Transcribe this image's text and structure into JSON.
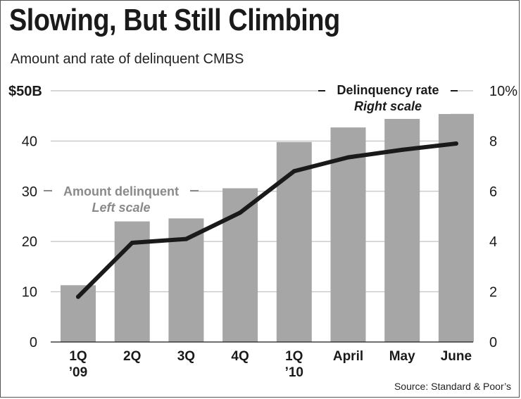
{
  "title": "Slowing, But Still Climbing",
  "subtitle": "Amount and rate of delinquent CMBS",
  "source": "Source: Standard & Poor’s",
  "colors": {
    "bar": "#a6a6a6",
    "line": "#1a1a1a",
    "grid": "#c8c8c8",
    "annotation_gray": "#8a8a8a"
  },
  "chart_data": {
    "type": "bar",
    "categories": [
      [
        "1Q",
        "’09"
      ],
      [
        "2Q"
      ],
      [
        "3Q"
      ],
      [
        "4Q"
      ],
      [
        "1Q",
        "’10"
      ],
      [
        "April"
      ],
      [
        "May"
      ],
      [
        "June"
      ]
    ],
    "series": [
      {
        "name": "Amount delinquent",
        "type": "bar",
        "axis": "left",
        "values": [
          11.3,
          24.0,
          24.6,
          30.6,
          39.8,
          42.7,
          44.4,
          45.4
        ]
      },
      {
        "name": "Delinquency rate",
        "type": "line",
        "axis": "right",
        "values": [
          1.8,
          3.95,
          4.1,
          5.15,
          6.8,
          7.35,
          7.65,
          7.9
        ]
      }
    ],
    "left_axis": {
      "ticks": [
        0,
        10,
        20,
        30,
        40,
        50
      ],
      "tick_labels": [
        "0",
        "10",
        "20",
        "30",
        "40",
        "$50B"
      ],
      "ylim": [
        0,
        50
      ]
    },
    "right_axis": {
      "ticks": [
        0,
        2,
        4,
        6,
        8,
        10
      ],
      "tick_labels": [
        "0",
        "2",
        "4",
        "6",
        "8",
        "10%"
      ],
      "ylim": [
        0,
        10
      ]
    },
    "grid": true,
    "annotations": [
      {
        "lines": [
          "Amount delinquent",
          "Left scale"
        ],
        "series": "Amount delinquent"
      },
      {
        "lines": [
          "Delinquency rate",
          "Right scale"
        ],
        "series": "Delinquency rate"
      }
    ]
  }
}
